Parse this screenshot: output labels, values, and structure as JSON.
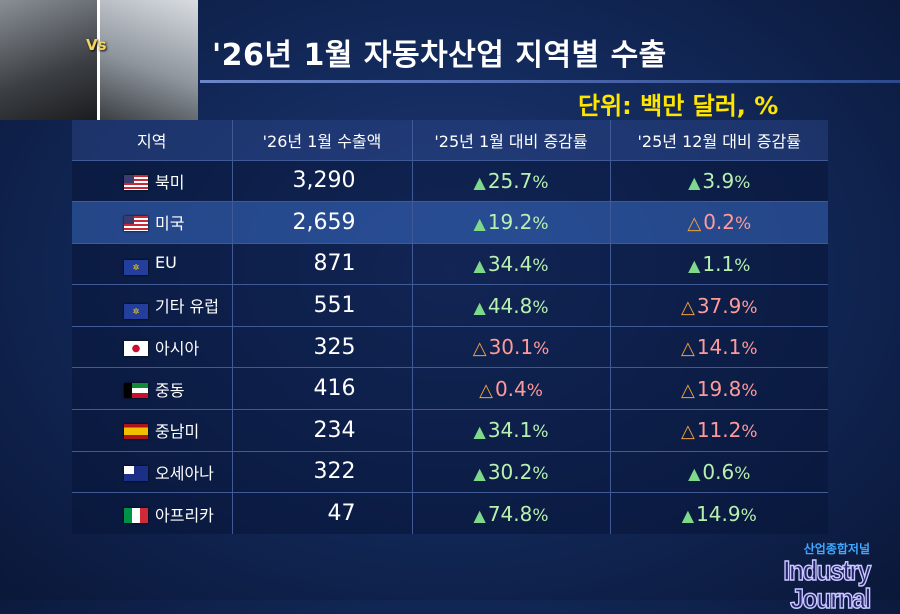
{
  "header": {
    "title": "'26년 1월 자동차산업 지역별 수출",
    "unit": "단위: 백만 달러, %",
    "photo_label": "Vs"
  },
  "table": {
    "columns": [
      "지역",
      "'26년 1월 수출액",
      "'25년 1월 대비 증감률",
      "'25년 12월 대비 증감률"
    ],
    "rows": [
      {
        "flag": "us",
        "region": "북미",
        "value": "3,290",
        "yoy": "25.7",
        "yoy_dir": "up",
        "mom": "3.9",
        "mom_dir": "up"
      },
      {
        "flag": "us",
        "region": "미국",
        "value": "2,659",
        "yoy": "19.2",
        "yoy_dir": "up",
        "mom": "0.2",
        "mom_dir": "down"
      },
      {
        "flag": "eu",
        "region": "EU",
        "value": "871",
        "yoy": "34.4",
        "yoy_dir": "up",
        "mom": "1.1",
        "mom_dir": "up"
      },
      {
        "flag": "eu",
        "region": "기타 유럽",
        "value": "551",
        "yoy": "44.8",
        "yoy_dir": "up",
        "mom": "37.9",
        "mom_dir": "down"
      },
      {
        "flag": "jp",
        "region": "아시아",
        "value": "325",
        "yoy": "30.1",
        "yoy_dir": "down",
        "mom": "14.1",
        "mom_dir": "down"
      },
      {
        "flag": "kw",
        "region": "중동",
        "value": "416",
        "yoy": "0.4",
        "yoy_dir": "down",
        "mom": "19.8",
        "mom_dir": "down"
      },
      {
        "flag": "es",
        "region": "중남미",
        "value": "234",
        "yoy": "34.1",
        "yoy_dir": "up",
        "mom": "11.2",
        "mom_dir": "down"
      },
      {
        "flag": "au",
        "region": "오세아나",
        "value": "322",
        "yoy": "30.2",
        "yoy_dir": "up",
        "mom": "0.6",
        "mom_dir": "up"
      },
      {
        "flag": "it",
        "region": "아프리카",
        "value": "47",
        "yoy": "74.8",
        "yoy_dir": "up",
        "mom": "14.9",
        "mom_dir": "up"
      }
    ],
    "highlighted_row": 1,
    "pct_sign": "%",
    "colors": {
      "up": "#7fd98a",
      "down_triangle": "#f0a040",
      "down_text": "#ff9a9a"
    }
  },
  "logo": {
    "korean": "산업종합저널",
    "english": "Industry Journal"
  }
}
